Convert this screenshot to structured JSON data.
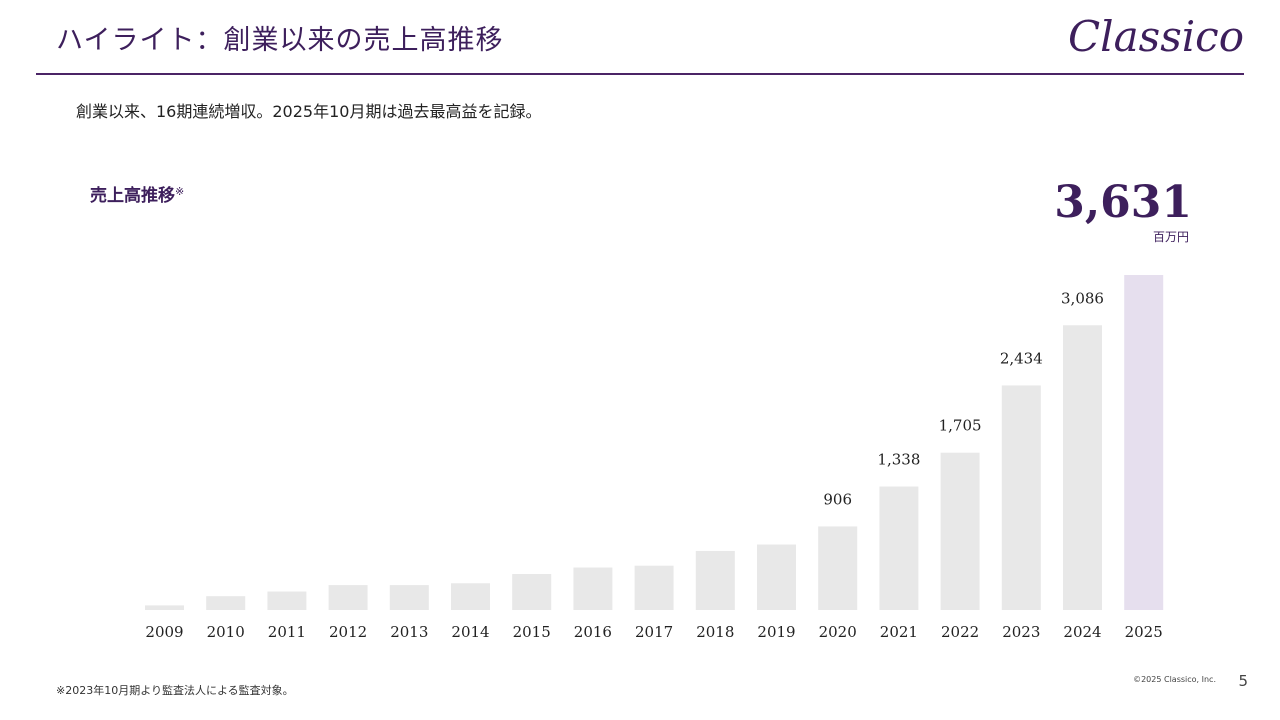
{
  "header": {
    "title": "ハイライト：創業以来の売上高推移",
    "brand": "Classico"
  },
  "subtitle": "創業以来、16期連続増収。2025年10月期は過去最高益を記録。",
  "highlight": {
    "value": "3,631",
    "unit": "百万円"
  },
  "footer": {
    "note": "※2023年10月期より監査法人による監査対象。",
    "copyright": "©2025 Classico, Inc.",
    "page": "5"
  },
  "colors": {
    "accent": "#3d1f5c",
    "bar": "#e8e8e8",
    "bar_highlight": "#e6dfee"
  },
  "chart_data": {
    "type": "bar",
    "title": "売上高推移",
    "title_mark": "※",
    "categories": [
      "2009",
      "2010",
      "2011",
      "2012",
      "2013",
      "2014",
      "2015",
      "2016",
      "2017",
      "2018",
      "2019",
      "2020",
      "2021",
      "2022",
      "2023",
      "2024",
      "2025"
    ],
    "values": [
      50,
      150,
      200,
      270,
      270,
      290,
      390,
      460,
      480,
      640,
      710,
      906,
      1338,
      1705,
      2434,
      3086,
      3631
    ],
    "data_labels": [
      "",
      "",
      "",
      "",
      "",
      "",
      "",
      "",
      "",
      "",
      "",
      "906",
      "1,338",
      "1,705",
      "2,434",
      "3,086",
      ""
    ],
    "highlight_category": "2025",
    "ylim": [
      0,
      3631
    ],
    "grid": false,
    "xlabel": "",
    "ylabel": ""
  }
}
